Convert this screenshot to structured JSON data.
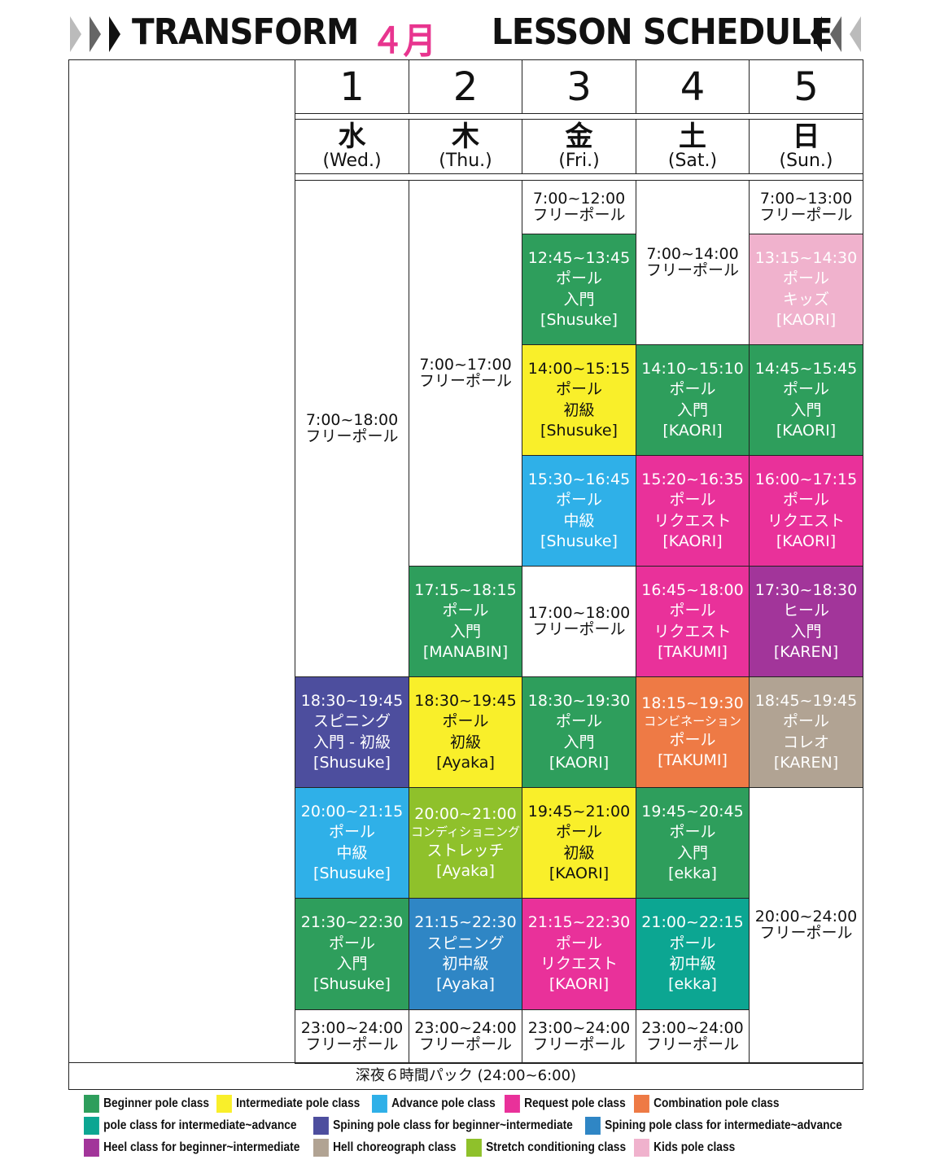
{
  "header": {
    "brand": "TRANSFORM",
    "month": "４月",
    "subtitle": "LESSON SCHEDULE"
  },
  "colors": {
    "beginner": "#2e9e5c",
    "intermediate": "#f9ef2a",
    "advance": "#2fb0e8",
    "request": "#e9319a",
    "combination": "#ee7a45",
    "teal": "#0ca692",
    "spin_beg": "#4d4e9e",
    "spin_int": "#2f86c5",
    "heel": "#a2359a",
    "heel_choreo": "#b1a393",
    "stretch": "#8fc12b",
    "kids": "#f0b2cd"
  },
  "days": [
    {
      "num": "1",
      "kanji": "水",
      "en": "(Wed.)"
    },
    {
      "num": "2",
      "kanji": "木",
      "en": "(Thu.)"
    },
    {
      "num": "3",
      "kanji": "金",
      "en": "(Fri.)"
    },
    {
      "num": "4",
      "kanji": "土",
      "en": "(Sat.)"
    },
    {
      "num": "5",
      "kanji": "日",
      "en": "(Sun.)"
    }
  ],
  "schedule": {
    "wed": [
      {
        "lines": [
          "7:00~18:00",
          "フリーポール"
        ]
      },
      {
        "lines": [
          "18:30~19:45",
          "スピニング",
          "入門 - 初級",
          "[Shusuke]"
        ]
      },
      {
        "lines": [
          "20:00~21:15",
          "ポール",
          "中級",
          "[Shusuke]"
        ]
      },
      {
        "lines": [
          "21:30~22:30",
          "ポール",
          "入門",
          "[Shusuke]"
        ]
      },
      {
        "lines": [
          "23:00~24:00",
          "フリーポール"
        ]
      }
    ],
    "thu": [
      {
        "lines": [
          "7:00~17:00",
          "フリーポール"
        ]
      },
      {
        "lines": [
          "17:15~18:15",
          "ポール",
          "入門",
          "[MANABIN]"
        ]
      },
      {
        "lines": [
          "18:30~19:45",
          "ポール",
          "初級",
          "[Ayaka]"
        ]
      },
      {
        "lines": [
          "20:00~21:00",
          "コンディショニング",
          "ストレッチ",
          "[Ayaka]"
        ]
      },
      {
        "lines": [
          "21:15~22:30",
          "スピニング",
          "初中級",
          "[Ayaka]"
        ]
      },
      {
        "lines": [
          "23:00~24:00",
          "フリーポール"
        ]
      }
    ],
    "fri": [
      {
        "lines": [
          "7:00~12:00",
          "フリーポール"
        ]
      },
      {
        "lines": [
          "12:45~13:45",
          "ポール",
          "入門",
          "[Shusuke]"
        ]
      },
      {
        "lines": [
          "14:00~15:15",
          "ポール",
          "初級",
          "[Shusuke]"
        ]
      },
      {
        "lines": [
          "15:30~16:45",
          "ポール",
          "中級",
          "[Shusuke]"
        ]
      },
      {
        "lines": [
          "17:00~18:00",
          "フリーポール"
        ]
      },
      {
        "lines": [
          "18:30~19:30",
          "ポール",
          "入門",
          "[KAORI]"
        ]
      },
      {
        "lines": [
          "19:45~21:00",
          "ポール",
          "初級",
          "[KAORI]"
        ]
      },
      {
        "lines": [
          "21:15~22:30",
          "ポール",
          "リクエスト",
          "[KAORI]"
        ]
      },
      {
        "lines": [
          "23:00~24:00",
          "フリーポール"
        ]
      }
    ],
    "sat": [
      {
        "lines": [
          "7:00~14:00",
          "フリーポール"
        ]
      },
      {
        "lines": [
          "14:10~15:10",
          "ポール",
          "入門",
          "[KAORI]"
        ]
      },
      {
        "lines": [
          "15:20~16:35",
          "ポール",
          "リクエスト",
          "[KAORI]"
        ]
      },
      {
        "lines": [
          "16:45~18:00",
          "ポール",
          "リクエスト",
          "[TAKUMI]"
        ]
      },
      {
        "lines": [
          "18:15~19:30",
          "コンビネーション",
          "ポール",
          "[TAKUMI]"
        ]
      },
      {
        "lines": [
          "19:45~20:45",
          "ポール",
          "入門",
          "[ekka]"
        ]
      },
      {
        "lines": [
          "21:00~22:15",
          "ポール",
          "初中級",
          "[ekka]"
        ]
      },
      {
        "lines": [
          "23:00~24:00",
          "フリーポール"
        ]
      }
    ],
    "sun": [
      {
        "lines": [
          "7:00~13:00",
          "フリーポール"
        ]
      },
      {
        "lines": [
          "13:15~14:30",
          "ポール",
          "キッズ",
          "[KAORI]"
        ]
      },
      {
        "lines": [
          "14:45~15:45",
          "ポール",
          "入門",
          "[KAORI]"
        ]
      },
      {
        "lines": [
          "16:00~17:15",
          "ポール",
          "リクエスト",
          "[KAORI]"
        ]
      },
      {
        "lines": [
          "17:30~18:30",
          "ヒール",
          "入門",
          "[KAREN]"
        ]
      },
      {
        "lines": [
          "18:45~19:45",
          "ポール",
          "コレオ",
          "[KAREN]"
        ]
      },
      {
        "lines": [
          "20:00~24:00",
          "フリーポール"
        ]
      }
    ]
  },
  "footer_pack": "深夜６時間パック (24:00~6:00)",
  "legend": [
    {
      "label": "Beginner pole class",
      "color": "#2e9e5c"
    },
    {
      "label": "Intermediate pole class",
      "color": "#f9ef2a"
    },
    {
      "label": "Advance pole class",
      "color": "#2fb0e8"
    },
    {
      "label": "Request pole class",
      "color": "#e9319a"
    },
    {
      "label": "Combination pole class",
      "color": "#ee7a45"
    },
    {
      "label": "pole class for intermediate~advance",
      "color": "#0ca692"
    },
    {
      "label": "Spining pole class for beginner~intermediate",
      "color": "#4d4e9e"
    },
    {
      "label": "Spining pole class for intermediate~advance",
      "color": "#2f86c5"
    },
    {
      "label": "Heel class for beginner~intermediate",
      "color": "#a2359a"
    },
    {
      "label": "Hell choreograph class",
      "color": "#b1a393"
    },
    {
      "label": "Stretch conditioning class",
      "color": "#8fc12b"
    },
    {
      "label": "Kids pole class",
      "color": "#f0b2cd"
    }
  ]
}
